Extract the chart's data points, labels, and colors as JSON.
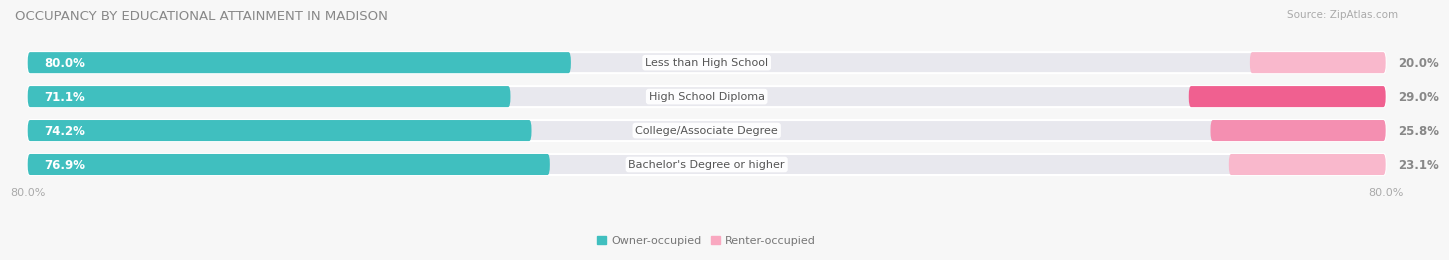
{
  "title": "OCCUPANCY BY EDUCATIONAL ATTAINMENT IN MADISON",
  "source": "Source: ZipAtlas.com",
  "categories": [
    "Less than High School",
    "High School Diploma",
    "College/Associate Degree",
    "Bachelor's Degree or higher"
  ],
  "owner_values": [
    80.0,
    71.1,
    74.2,
    76.9
  ],
  "renter_values": [
    20.0,
    29.0,
    25.8,
    23.1
  ],
  "owner_color": "#40bfbf",
  "renter_color_1": "#f9a8c0",
  "renter_color_2": "#f06090",
  "renter_colors": [
    "#f9b8cc",
    "#f06090",
    "#f48fb1",
    "#f9b8cc"
  ],
  "bar_bg_color": "#e8e8ee",
  "label_box_color": "#ffffff",
  "value_color": "#ffffff",
  "cat_label_color": "#888888",
  "title_color": "#888888",
  "source_color": "#aaaaaa",
  "axis_tick_color": "#aaaaaa",
  "background_color": "#f7f7f7",
  "bar_height": 0.62,
  "bar_gap": 0.08,
  "xlim_left": -82,
  "xlim_right": 82,
  "xtick_left": -80,
  "xtick_right": 80,
  "title_fontsize": 9.5,
  "value_fontsize": 8.5,
  "cat_fontsize": 8,
  "legend_fontsize": 8,
  "source_fontsize": 7.5,
  "tick_fontsize": 8
}
